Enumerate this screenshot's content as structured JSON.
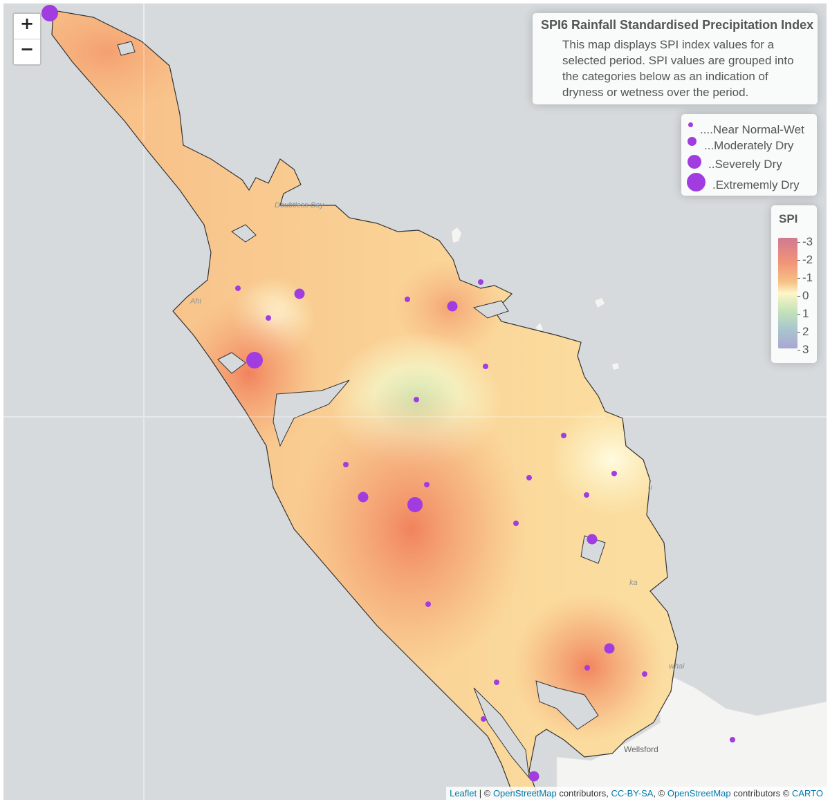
{
  "zoom": {
    "in_label": "+",
    "out_label": "−"
  },
  "info": {
    "title": "SPI6 Rainfall Standardised Precipitation Index",
    "description": "This map displays SPI index values for a selected period. SPI values are grouped into the categories below as an indication of dryness or wetness over the period."
  },
  "legend": {
    "items": [
      {
        "label": "....Near Normal-Wet"
      },
      {
        "label": "...Moderately Dry"
      },
      {
        "label": "..Severely Dry"
      },
      {
        "label": ".Extrememly Dry"
      }
    ]
  },
  "color_scale": {
    "title": "SPI",
    "ticks": [
      "-3",
      "-2",
      "-1",
      "0",
      "1",
      "2",
      "3"
    ],
    "colors": {
      "wet": "#aaa6d2",
      "normal": "#fdf6c8",
      "dry": "#f29378",
      "extreme": "#d07a90",
      "marker": "#a03ce0"
    }
  },
  "basemap": {
    "labels": [
      "Doubtless Bay",
      "Wellsford",
      "whai",
      "ka",
      "u",
      "Ahi"
    ],
    "town": "Wellsford"
  },
  "attribution": {
    "leaflet": "Leaflet",
    "sep1": " | © ",
    "osm": "OpenStreetMap",
    "t1": " contributors, ",
    "ccbysa": "CC-BY-SA",
    "t2": ", © ",
    "osm2": "OpenStreetMap",
    "t3": " contributors © ",
    "carto": "CARTO"
  },
  "stations": [
    {
      "category": "Extrememly Dry"
    },
    {
      "category": "Near Normal-Wet"
    },
    {
      "category": "Moderately Dry"
    },
    {
      "category": "Near Normal-Wet"
    },
    {
      "category": "Near Normal-Wet"
    },
    {
      "category": "Moderately Dry"
    },
    {
      "category": "Near Normal-Wet"
    },
    {
      "category": "Extrememly Dry"
    },
    {
      "category": "Near Normal-Wet"
    },
    {
      "category": "Near Normal-Wet"
    },
    {
      "category": "Near Normal-Wet"
    },
    {
      "category": "Near Normal-Wet"
    },
    {
      "category": "Near Normal-Wet"
    },
    {
      "category": "Near Normal-Wet"
    },
    {
      "category": "Moderately Dry"
    },
    {
      "category": "Severely Dry"
    },
    {
      "category": "Near Normal-Wet"
    },
    {
      "category": "Near Normal-Wet"
    },
    {
      "category": "Near Normal-Wet"
    },
    {
      "category": "Moderately Dry"
    },
    {
      "category": "Near Normal-Wet"
    },
    {
      "category": "Moderately Dry"
    },
    {
      "category": "Near Normal-Wet"
    },
    {
      "category": "Near Normal-Wet"
    },
    {
      "category": "Near Normal-Wet"
    },
    {
      "category": "Near Normal-Wet"
    },
    {
      "category": "Moderately Dry"
    },
    {
      "category": "Near Normal-Wet"
    }
  ]
}
